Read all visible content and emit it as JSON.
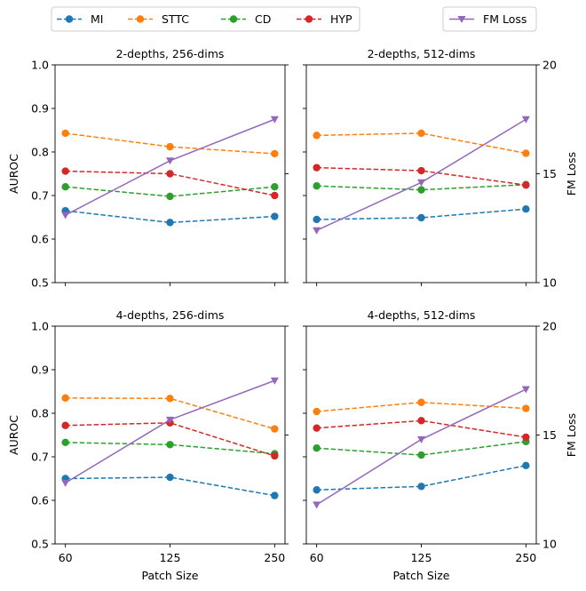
{
  "chart_data": {
    "type": "line",
    "x": [
      60,
      125,
      250
    ],
    "xlabel": "Patch Size",
    "ylabel": "AUROC",
    "ylim": [
      0.5,
      1.0
    ],
    "yticks": [
      "0.5",
      "0.6",
      "0.7",
      "0.8",
      "0.9",
      "1.0"
    ],
    "y2label": "FM Loss",
    "y2lim": [
      10,
      20
    ],
    "y2ticks": [
      "10",
      "15",
      "20"
    ],
    "xticks": [
      "60",
      "125",
      "250"
    ],
    "legend": {
      "placement": "top",
      "entries": [
        {
          "name": "MI",
          "color": "#1f77b4",
          "style": "dashed",
          "marker": "circle"
        },
        {
          "name": "STTC",
          "color": "#ff7f0e",
          "style": "dashed",
          "marker": "circle"
        },
        {
          "name": "CD",
          "color": "#2ca02c",
          "style": "dashed",
          "marker": "circle"
        },
        {
          "name": "HYP",
          "color": "#d62728",
          "style": "dashed",
          "marker": "circle"
        },
        {
          "name": "FM Loss",
          "color": "#9467bd",
          "style": "solid",
          "marker": "triangle-down"
        }
      ]
    },
    "panels": [
      {
        "title": "2-depths, 256-dims",
        "series": [
          {
            "name": "MI",
            "values": [
              0.665,
              0.638,
              0.652
            ]
          },
          {
            "name": "STTC",
            "values": [
              0.843,
              0.812,
              0.796
            ]
          },
          {
            "name": "CD",
            "values": [
              0.72,
              0.698,
              0.72
            ]
          },
          {
            "name": "HYP",
            "values": [
              0.756,
              0.75,
              0.7
            ]
          }
        ],
        "fm_loss": [
          13.1,
          15.6,
          17.5
        ]
      },
      {
        "title": "2-depths, 512-dims",
        "series": [
          {
            "name": "MI",
            "values": [
              0.645,
              0.649,
              0.669
            ]
          },
          {
            "name": "STTC",
            "values": [
              0.838,
              0.843,
              0.797
            ]
          },
          {
            "name": "CD",
            "values": [
              0.722,
              0.713,
              0.725
            ]
          },
          {
            "name": "HYP",
            "values": [
              0.764,
              0.757,
              0.724
            ]
          }
        ],
        "fm_loss": [
          12.4,
          14.6,
          17.5
        ]
      },
      {
        "title": "4-depths, 256-dims",
        "series": [
          {
            "name": "MI",
            "values": [
              0.65,
              0.653,
              0.611
            ]
          },
          {
            "name": "STTC",
            "values": [
              0.835,
              0.834,
              0.764
            ]
          },
          {
            "name": "CD",
            "values": [
              0.733,
              0.728,
              0.707
            ]
          },
          {
            "name": "HYP",
            "values": [
              0.772,
              0.778,
              0.702
            ]
          }
        ],
        "fm_loss": [
          12.8,
          15.7,
          17.5
        ]
      },
      {
        "title": "4-depths, 512-dims",
        "series": [
          {
            "name": "MI",
            "values": [
              0.624,
              0.632,
              0.68
            ]
          },
          {
            "name": "STTC",
            "values": [
              0.804,
              0.825,
              0.811
            ]
          },
          {
            "name": "CD",
            "values": [
              0.72,
              0.704,
              0.735
            ]
          },
          {
            "name": "HYP",
            "values": [
              0.766,
              0.783,
              0.745
            ]
          }
        ],
        "fm_loss": [
          11.8,
          14.8,
          17.1
        ]
      }
    ]
  }
}
